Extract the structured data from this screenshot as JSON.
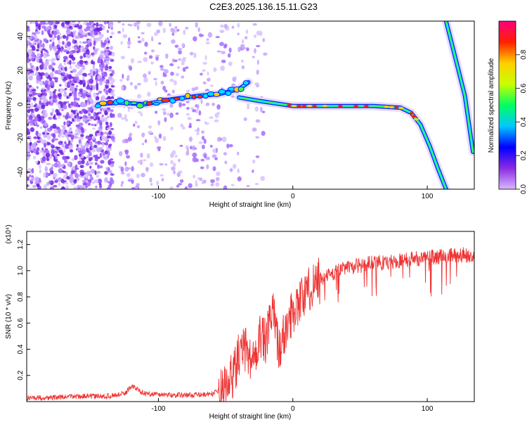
{
  "title": "C2E3.2025.136.15.11.G23",
  "spectrogram": {
    "type": "heatmap",
    "xlabel": "Height of straight line (km)",
    "ylabel": "Frequency (Hz)",
    "xlim": [
      -198,
      135
    ],
    "ylim": [
      -50,
      49
    ],
    "xticks": [
      -100,
      0,
      100
    ],
    "yticks": [
      -40,
      -20,
      0,
      20,
      40
    ],
    "colorbar": {
      "label": "Normalized spectral amplitude",
      "range": [
        0,
        1
      ],
      "ticks": [
        0.0,
        0.2,
        0.4,
        0.6,
        0.8
      ],
      "colors": [
        "#d8b8ff",
        "#8a2be2",
        "#0000ff",
        "#00c8ff",
        "#00ff60",
        "#c8ff00",
        "#ffd000",
        "#ff2000",
        "#ff0080"
      ]
    },
    "main_trace": [
      {
        "x": -145,
        "y": 0
      },
      {
        "x": -130,
        "y": 1
      },
      {
        "x": -110,
        "y": 0
      },
      {
        "x": -90,
        "y": 3
      },
      {
        "x": -70,
        "y": 5
      },
      {
        "x": -55,
        "y": 6
      },
      {
        "x": -40,
        "y": 9
      },
      {
        "x": -33,
        "y": 13
      }
    ],
    "lower_trace": [
      {
        "x": -40,
        "y": 4
      },
      {
        "x": -25,
        "y": 2
      },
      {
        "x": 0,
        "y": -1
      },
      {
        "x": 20,
        "y": -1
      },
      {
        "x": 40,
        "y": -1
      },
      {
        "x": 60,
        "y": -1
      },
      {
        "x": 80,
        "y": -2
      },
      {
        "x": 88,
        "y": -5
      },
      {
        "x": 95,
        "y": -12
      },
      {
        "x": 102,
        "y": -25
      },
      {
        "x": 108,
        "y": -38
      },
      {
        "x": 114,
        "y": -50
      }
    ],
    "right_trace": [
      {
        "x": 114,
        "y": 49
      },
      {
        "x": 122,
        "y": 24
      },
      {
        "x": 128,
        "y": 5
      },
      {
        "x": 134,
        "y": -28
      }
    ]
  },
  "snr": {
    "type": "line",
    "xlabel": "Height of straight line (km)",
    "ylabel": "SNR (10 * v/v)",
    "scale_label": "(x10⁴)",
    "xlim": [
      -198,
      135
    ],
    "ylim": [
      0,
      1.3
    ],
    "xticks": [
      -100,
      0,
      100
    ],
    "yticks": [
      0.2,
      0.4,
      0.6,
      0.8,
      1.0,
      1.2
    ],
    "color": "#ee3333",
    "series": [
      {
        "x": [
          -198,
          -180,
          -160,
          -140,
          -125,
          -120,
          -110,
          -90,
          -70,
          -60,
          -50,
          -45,
          -40,
          -35,
          -30,
          -25,
          -20,
          -15,
          -10,
          -5,
          0,
          5,
          10,
          15,
          20,
          25,
          30,
          35,
          40,
          50,
          60,
          70,
          80,
          90,
          95,
          100,
          110,
          120,
          135
        ],
        "y": [
          0.03,
          0.03,
          0.04,
          0.04,
          0.06,
          0.12,
          0.06,
          0.05,
          0.05,
          0.06,
          0.1,
          0.2,
          0.35,
          0.4,
          0.3,
          0.5,
          0.45,
          0.7,
          0.4,
          0.55,
          0.7,
          0.78,
          0.82,
          0.9,
          0.94,
          0.96,
          0.98,
          1.0,
          1.02,
          1.04,
          1.06,
          1.06,
          1.08,
          1.09,
          1.1,
          1.1,
          1.11,
          1.12,
          1.12
        ]
      }
    ]
  }
}
